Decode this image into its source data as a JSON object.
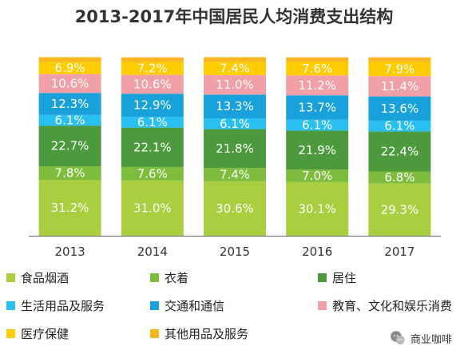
{
  "page": {
    "watermark_text": "商业咖啡"
  },
  "chart_data": {
    "type": "bar",
    "stacked": true,
    "title": "2013-2017年中国居民人均消费支出结构",
    "categories": [
      "2013",
      "2014",
      "2015",
      "2016",
      "2017"
    ],
    "ylim": [
      0,
      100
    ],
    "grid": false,
    "legend_position": "bottom",
    "series": [
      {
        "name": "食品烟酒",
        "color": "#a9ce3f",
        "values": [
          31.2,
          31.0,
          30.6,
          30.1,
          29.3
        ],
        "labels": [
          "31.2%",
          "31.0%",
          "30.6%",
          "30.1%",
          "29.3%"
        ]
      },
      {
        "name": "衣着",
        "color": "#7dbc3c",
        "values": [
          7.8,
          7.6,
          7.4,
          7.0,
          6.8
        ],
        "labels": [
          "7.8%",
          "7.6%",
          "7.4%",
          "7.0%",
          "6.8%"
        ]
      },
      {
        "name": "居住",
        "color": "#4c9a3d",
        "values": [
          22.7,
          22.1,
          21.8,
          21.9,
          22.4
        ],
        "labels": [
          "22.7%",
          "22.1%",
          "21.8%",
          "21.9%",
          "22.4%"
        ]
      },
      {
        "name": "生活用品及服务",
        "color": "#29bff0",
        "values": [
          6.1,
          6.1,
          6.1,
          6.1,
          6.1
        ],
        "labels": [
          "6.1%",
          "6.1%",
          "6.1%",
          "6.1%",
          "6.1%"
        ]
      },
      {
        "name": "交通和通信",
        "color": "#18a1db",
        "values": [
          12.3,
          12.9,
          13.3,
          13.7,
          13.6
        ],
        "labels": [
          "12.3%",
          "12.9%",
          "13.3%",
          "13.7%",
          "13.6%"
        ]
      },
      {
        "name": "教育、文化和娱乐消费",
        "color": "#f2a0a7",
        "values": [
          10.6,
          10.6,
          11.0,
          11.2,
          11.4
        ],
        "labels": [
          "10.6%",
          "10.6%",
          "11.0%",
          "11.2%",
          "11.4%"
        ]
      },
      {
        "name": "医疗保健",
        "color": "#ffcc00",
        "values": [
          6.9,
          7.2,
          7.4,
          7.6,
          7.9
        ],
        "labels": [
          "6.9%",
          "7.2%",
          "7.4%",
          "7.6%",
          "7.9%"
        ]
      },
      {
        "name": "其他用品及服务",
        "color": "#f8b51d",
        "values": [
          2.6,
          2.6,
          2.6,
          2.5,
          2.6
        ],
        "labels": [
          "",
          "",
          "",
          "",
          ""
        ]
      }
    ],
    "legend_order": [
      0,
      1,
      2,
      3,
      4,
      5,
      6,
      7
    ]
  }
}
